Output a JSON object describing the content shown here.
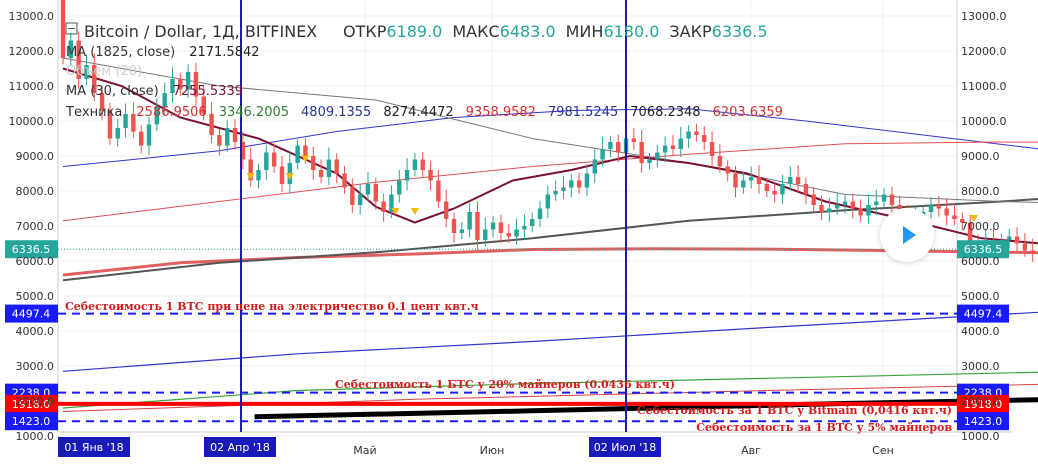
{
  "chart_data": {
    "type": "candlestick",
    "symbol_line": "Bitcoin / Dollar, 1Д, BITFINEX",
    "ohlc": {
      "open_label": "ОТКР",
      "open": "6189.0",
      "high_label": "МАКС",
      "high": "6483.0",
      "low_label": "МИН",
      "low": "6180.0",
      "close_label": "ЗАКР",
      "close": "6336.5"
    },
    "indicators": [
      {
        "label": "MA (1825, close)",
        "values": [
          "2171.5842"
        ],
        "colors": [
          "#222222"
        ]
      },
      {
        "label": "Объем (20)",
        "values": [],
        "colors": []
      },
      {
        "label": "MA (30, close)",
        "values": [
          "7255.5339"
        ],
        "colors": [
          "#7b1030"
        ]
      },
      {
        "label": "Техника",
        "values": [
          "2586.9506",
          "3346.2005",
          "4809.1355",
          "8274.4472",
          "9358.9582",
          "7981.5245",
          "7068.2348",
          "6203.6359"
        ],
        "colors": [
          "#d32f2f",
          "#2e7d32",
          "#283593",
          "#222222",
          "#d32f2f",
          "#283593",
          "#222222",
          "#d32f2f"
        ]
      }
    ],
    "y_ticks": [
      "13000.0",
      "12000.0",
      "11000.0",
      "10000.0",
      "9000.0",
      "8000.0",
      "7000.0",
      "6000.0",
      "5000.0",
      "4000.0",
      "3000.0",
      "2000.0",
      "1000.0"
    ],
    "x_ticks": [
      "Май",
      "Июн",
      "Авг",
      "Сен"
    ],
    "x_highlight_labels": [
      "01 Янв '18",
      "02 Апр '18",
      "02 Июл '18"
    ],
    "ylim": [
      800,
      13300
    ],
    "price_tag": "6336.5",
    "price_levels": [
      {
        "label": "4497.4",
        "color": "#1a1aff"
      },
      {
        "label": "2238.0",
        "color": "#1a1aff"
      },
      {
        "label": "1918.0",
        "color": "#ff0000"
      },
      {
        "label": "1423.0",
        "color": "#1a1aff"
      }
    ],
    "annotations": [
      "Себестоимость 1 BTC при цене на электричество 0.1 цент квт.ч",
      "Себестоимость  1 БТС у 20% майнеров (0.0436 квт.ч)",
      "Себестоимость  за 1 BTC у Bitmain (0,0416 квт.ч)",
      "Себестоимость за 1 BTC у 5% майнеров"
    ],
    "colors": {
      "up": "#26a69a",
      "down": "#ef5350",
      "level": "#1a1aff",
      "cost_red": "#ff0000"
    }
  }
}
